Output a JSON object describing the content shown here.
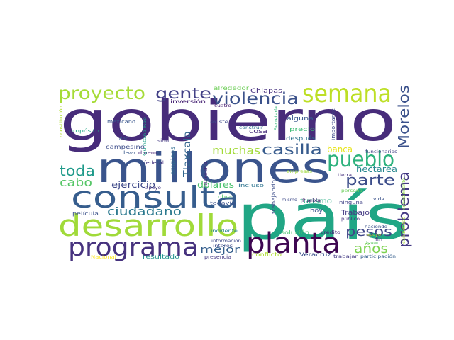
{
  "word_cloud": {
    "words": [
      {
        "text": "gobierno",
        "color": "#472c7a"
      },
      {
        "text": "país",
        "color": "#21a685"
      },
      {
        "text": "millones",
        "color": "#3a548c"
      },
      {
        "text": "consulta",
        "color": "#365d8d"
      },
      {
        "text": "desarrollo",
        "color": "#a0da39"
      },
      {
        "text": "programa",
        "color": "#46327e"
      },
      {
        "text": "planta",
        "color": "#3e0751"
      },
      {
        "text": "semana",
        "color": "#bddf26"
      },
      {
        "text": "proyecto",
        "color": "#a5db36"
      },
      {
        "text": "pueblo",
        "color": "#2db27d"
      },
      {
        "text": "violencia",
        "color": "#3b528b"
      },
      {
        "text": "gente",
        "color": "#424086"
      },
      {
        "text": "casilla",
        "color": "#375b8d"
      },
      {
        "text": "Morelos",
        "color": "#3b518b"
      },
      {
        "text": "problema",
        "color": "#443983"
      },
      {
        "text": "toda",
        "color": "#1f9a8a"
      },
      {
        "text": "muchas",
        "color": "#a2da37"
      },
      {
        "text": "parte",
        "color": "#3d4e8a"
      },
      {
        "text": "cabo",
        "color": "#56c667"
      },
      {
        "text": "ciudadano",
        "color": "#2a788e"
      },
      {
        "text": "pesos",
        "color": "#404688"
      },
      {
        "text": "años",
        "color": "#7cd250"
      },
      {
        "text": "mejor",
        "color": "#355f8d"
      },
      {
        "text": "Tlaxcala",
        "color": "#31668e"
      },
      {
        "text": "hectárea",
        "color": "#24868e"
      },
      {
        "text": "ejercicio",
        "color": "#3e4989"
      },
      {
        "text": "dólares",
        "color": "#4ac16d"
      },
      {
        "text": "banca",
        "color": "#e7e419"
      },
      {
        "text": "turismo",
        "color": "#25ac82"
      },
      {
        "text": "Chiapas",
        "color": "#46307e"
      },
      {
        "text": "alrededor",
        "color": "#6ece58"
      },
      {
        "text": "inversión",
        "color": "#482475"
      },
      {
        "text": "campesino",
        "color": "#3d4d8a"
      },
      {
        "text": "empleos",
        "color": "#2f6c8e"
      },
      {
        "text": "alguna",
        "color": "#39568c"
      },
      {
        "text": "cosa",
        "color": "#472d7b"
      },
      {
        "text": "precio",
        "color": "#3dbc74"
      },
      {
        "text": "después",
        "color": "#2c728e"
      },
      {
        "text": "importante",
        "color": "#3e4a89"
      },
      {
        "text": "dinero",
        "color": "#482677"
      },
      {
        "text": "federal",
        "color": "#453581"
      },
      {
        "text": "llevar",
        "color": "#38588c"
      },
      {
        "text": "mexicano",
        "color": "#39568c"
      },
      {
        "text": "propósito",
        "color": "#22a884"
      },
      {
        "text": "dar",
        "color": "#3b528b"
      },
      {
        "text": "sido",
        "color": "#443a83"
      },
      {
        "text": "Quintana Roo",
        "color": "#1fa088"
      },
      {
        "text": "cuatro",
        "color": "#482071"
      },
      {
        "text": "existe",
        "color": "#3e4c8a"
      },
      {
        "text": "construir",
        "color": "#2e6f8e"
      },
      {
        "text": "Secretaría",
        "color": "#35b779"
      },
      {
        "text": "importante",
        "color": "#3e4a89"
      },
      {
        "text": "funcionarios",
        "color": "#424186"
      },
      {
        "text": "obra",
        "color": "#52c569"
      },
      {
        "text": "todavía",
        "color": "#3b528b"
      },
      {
        "text": "incluso",
        "color": "#2c738e"
      },
      {
        "text": "derecho",
        "color": "#482374"
      },
      {
        "text": "empresas",
        "color": "#9dd93b"
      },
      {
        "text": "trabajando",
        "color": "#3d4e8a"
      },
      {
        "text": "hoy",
        "color": "#3a538b"
      },
      {
        "text": "Puebla",
        "color": "#482071"
      },
      {
        "text": "Trabajo",
        "color": "#443983"
      },
      {
        "text": "ninguna",
        "color": "#414287"
      },
      {
        "text": "persona",
        "color": "#6ccd5a"
      },
      {
        "text": "tierra",
        "color": "#46317e"
      },
      {
        "text": "vida",
        "color": "#3b528b"
      },
      {
        "text": "solución",
        "color": "#4ac16d"
      },
      {
        "text": "crédito",
        "color": "#482677"
      },
      {
        "text": "incidente",
        "color": "#25848e"
      },
      {
        "text": "película",
        "color": "#3b528b"
      },
      {
        "text": "apoyo",
        "color": "#453781"
      },
      {
        "text": "información",
        "color": "#3e4989"
      },
      {
        "text": "interés",
        "color": "#3e4c8a"
      },
      {
        "text": "mismo",
        "color": "#3e4a89"
      },
      {
        "text": "conflicto",
        "color": "#addc30"
      },
      {
        "text": "presencia",
        "color": "#453882"
      },
      {
        "text": "resultado",
        "color": "#20928c"
      },
      {
        "text": "Veracruz",
        "color": "#3b518b"
      },
      {
        "text": "trabajar",
        "color": "#443b84"
      },
      {
        "text": "participación",
        "color": "#355f8d"
      },
      {
        "text": "público",
        "color": "#46307e"
      },
      {
        "text": "haciendo",
        "color": "#3b528b"
      },
      {
        "text": "Nacional",
        "color": "#fde725"
      },
      {
        "text": "lugar",
        "color": "#5ec962"
      },
      {
        "text": "fin",
        "color": "#46317e"
      },
      {
        "text": "apoyo",
        "color": "#c2df23"
      },
      {
        "text": "candidatos",
        "color": "#a8db34"
      },
      {
        "text": "constitución",
        "color": "#b0dd2f"
      },
      {
        "text": "conocimiento",
        "color": "#8bd646"
      }
    ]
  }
}
